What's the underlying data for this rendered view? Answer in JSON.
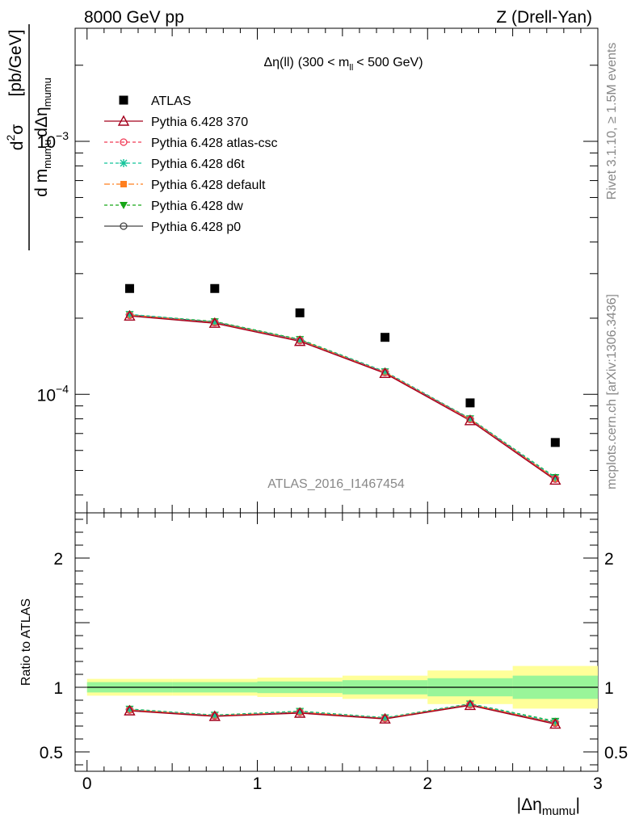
{
  "header": {
    "left": "8000 GeV pp",
    "right": "Z (Drell-Yan)"
  },
  "side_labels": {
    "rivet": "Rivet 3.1.10, ≥ 1.5M events",
    "mcplots": "mcplots.cern.ch [arXiv:1306.3436]"
  },
  "watermark": "ATLAS_2016_I1467454",
  "chart_data": [
    {
      "type": "scatter",
      "panel": "main",
      "title_parts": {
        "delta_eta": "Δη(ll)",
        "range_open": "(300 < m",
        "range_sub": "ll",
        "range_close": "< 500 GeV)"
      },
      "ylabel_parts": {
        "d2": "d",
        "two": "2",
        "sigma": "σ",
        "den_d_m": "d m",
        "den_mumu1": "mumu",
        "den_d_deta": "dΔη",
        "den_mumu2": "mumu",
        "unit": "[pb/GeV]"
      },
      "y_scale": "log",
      "ylim": [
        3.4e-05,
        0.0028
      ],
      "xlim": [
        -0.07,
        3.0
      ],
      "y_tick_labels": [
        {
          "value": 0.001,
          "base": "10",
          "exp": "−3"
        },
        {
          "value": 0.0001,
          "base": "10",
          "exp": "−4"
        }
      ],
      "x": [
        0.25,
        0.75,
        1.25,
        1.75,
        2.25,
        2.75
      ],
      "data": {
        "name": "ATLAS",
        "values": [
          0.000262,
          0.000262,
          0.00021,
          0.000168,
          9.25e-05,
          6.45e-05
        ]
      },
      "series": [
        {
          "name": "Pythia 6.428 370",
          "color": "#a3001c",
          "dash": "",
          "marker": "triangle-open",
          "values": [
            0.000204,
            0.000191,
            0.000162,
            0.000121,
            7.87e-05,
            4.58e-05
          ]
        },
        {
          "name": "Pythia 6.428 atlas-csc",
          "color": "#f03a55",
          "dash": "4,3",
          "marker": "circle-open",
          "values": [
            0.000205,
            0.000192,
            0.000163,
            0.000122,
            7.95e-05,
            4.62e-05
          ]
        },
        {
          "name": "Pythia 6.428 d6t",
          "color": "#12c49a",
          "dash": "4,3",
          "marker": "star",
          "values": [
            0.000207,
            0.000193,
            0.000164,
            0.000123,
            8e-05,
            4.68e-05
          ]
        },
        {
          "name": "Pythia 6.428 default",
          "color": "#ff7f1f",
          "dash": "7,3,2,3",
          "marker": "square",
          "values": [
            0.000206,
            0.000192,
            0.000164,
            0.000122,
            7.97e-05,
            4.64e-05
          ]
        },
        {
          "name": "Pythia 6.428 dw",
          "color": "#17a617",
          "dash": "4,3",
          "marker": "triangle-down",
          "values": [
            0.000207,
            0.000194,
            0.000165,
            0.000123,
            8.02e-05,
            4.7e-05
          ]
        },
        {
          "name": "Pythia 6.428 p0",
          "color": "#444444",
          "dash": "",
          "marker": "circle-open",
          "values": [
            0.000206,
            0.000193,
            0.000164,
            0.000122,
            7.98e-05,
            4.63e-05
          ]
        }
      ]
    },
    {
      "type": "line",
      "panel": "ratio",
      "ylabel": "Ratio to ATLAS",
      "xlabel_parts": {
        "open": "|Δη",
        "sub": "mumu",
        "close": "|"
      },
      "ylim": [
        0.35,
        2.35
      ],
      "xlim": [
        -0.07,
        3.0
      ],
      "x_tick_labels": [
        "0",
        "1",
        "2",
        "3"
      ],
      "y_tick_labels": [
        "0.5",
        "1",
        "2"
      ],
      "x_edges": [
        0.0,
        0.5,
        1.0,
        1.5,
        2.0,
        2.5,
        3.0
      ],
      "band_outer": [
        [
          0.935,
          1.065
        ],
        [
          0.935,
          1.065
        ],
        [
          0.925,
          1.075
        ],
        [
          0.91,
          1.09
        ],
        [
          0.87,
          1.13
        ],
        [
          0.835,
          1.165
        ]
      ],
      "band_inner": [
        [
          0.96,
          1.04
        ],
        [
          0.96,
          1.04
        ],
        [
          0.955,
          1.045
        ],
        [
          0.945,
          1.055
        ],
        [
          0.93,
          1.07
        ],
        [
          0.91,
          1.09
        ]
      ],
      "x": [
        0.25,
        0.75,
        1.25,
        1.75,
        2.25,
        2.75
      ],
      "series": [
        {
          "name": "Pythia 6.428 370",
          "values": [
            0.818,
            0.775,
            0.8,
            0.755,
            0.86,
            0.715
          ]
        },
        {
          "name": "Pythia 6.428 atlas-csc",
          "values": [
            0.823,
            0.778,
            0.805,
            0.758,
            0.865,
            0.72
          ]
        },
        {
          "name": "Pythia 6.428 d6t",
          "values": [
            0.83,
            0.783,
            0.812,
            0.763,
            0.87,
            0.733
          ]
        },
        {
          "name": "Pythia 6.428 default",
          "values": [
            0.826,
            0.78,
            0.808,
            0.76,
            0.867,
            0.726
          ]
        },
        {
          "name": "Pythia 6.428 dw",
          "values": [
            0.832,
            0.785,
            0.815,
            0.765,
            0.872,
            0.738
          ]
        },
        {
          "name": "Pythia 6.428 p0",
          "values": [
            0.825,
            0.779,
            0.807,
            0.759,
            0.866,
            0.724
          ]
        }
      ]
    }
  ]
}
